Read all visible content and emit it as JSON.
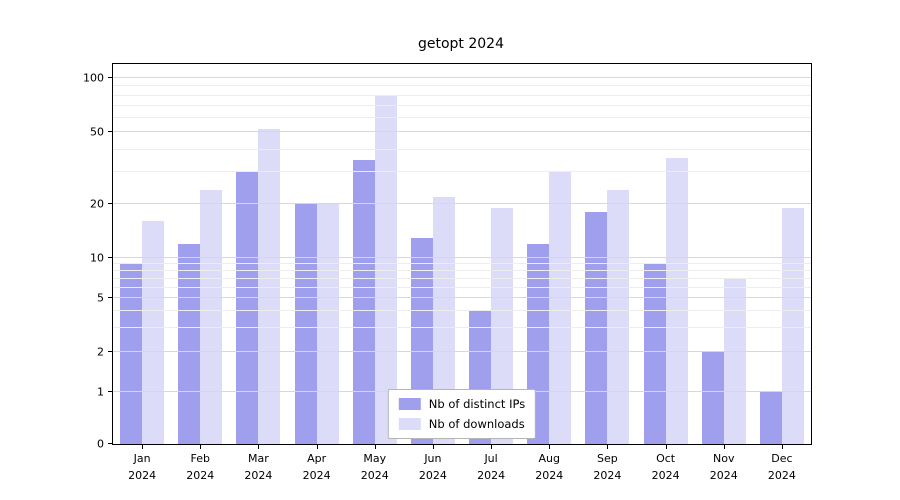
{
  "chart_data": {
    "type": "bar",
    "title": "getopt 2024",
    "categories": [
      "Jan 2024",
      "Feb 2024",
      "Mar 2024",
      "Apr 2024",
      "May 2024",
      "Jun 2024",
      "Jul 2024",
      "Aug 2024",
      "Sep 2024",
      "Oct 2024",
      "Nov 2024",
      "Dec 2024"
    ],
    "series": [
      {
        "name": "Nb of distinct IPs",
        "color": "#9f9fee",
        "values": [
          9,
          12,
          30,
          20,
          35,
          13,
          4,
          12,
          18,
          9,
          2,
          1
        ]
      },
      {
        "name": "Nb of downloads",
        "color": "#dcdcf8",
        "values": [
          16,
          24,
          52,
          20,
          80,
          22,
          19,
          30,
          24,
          36,
          7,
          19
        ]
      }
    ],
    "xlabel": "",
    "ylabel": "",
    "yscale": "symlog",
    "yticks": [
      0,
      1,
      2,
      5,
      10,
      20,
      50,
      100
    ],
    "minor_yticks": [
      3,
      4,
      6,
      7,
      8,
      9,
      30,
      40,
      60,
      70,
      80,
      90
    ],
    "ylim": [
      0,
      120
    ],
    "grid": true,
    "legend_position": "lower center"
  }
}
